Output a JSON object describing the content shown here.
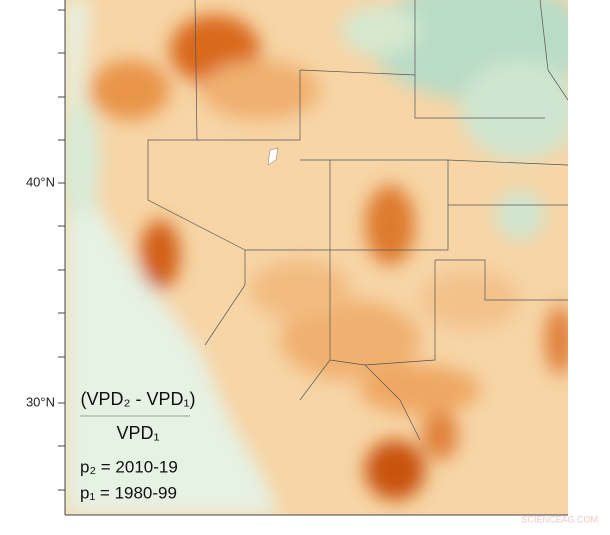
{
  "axis": {
    "latitude_labels": [
      "40°N",
      "30°N"
    ]
  },
  "formula": {
    "numerator": "(VPD₂ - VPD₁)",
    "denominator": "VPD₁"
  },
  "periods": [
    "p₂ = 2010-19",
    "p₁ = 1980-99"
  ],
  "watermark": "SCIENCEAG.COM"
}
